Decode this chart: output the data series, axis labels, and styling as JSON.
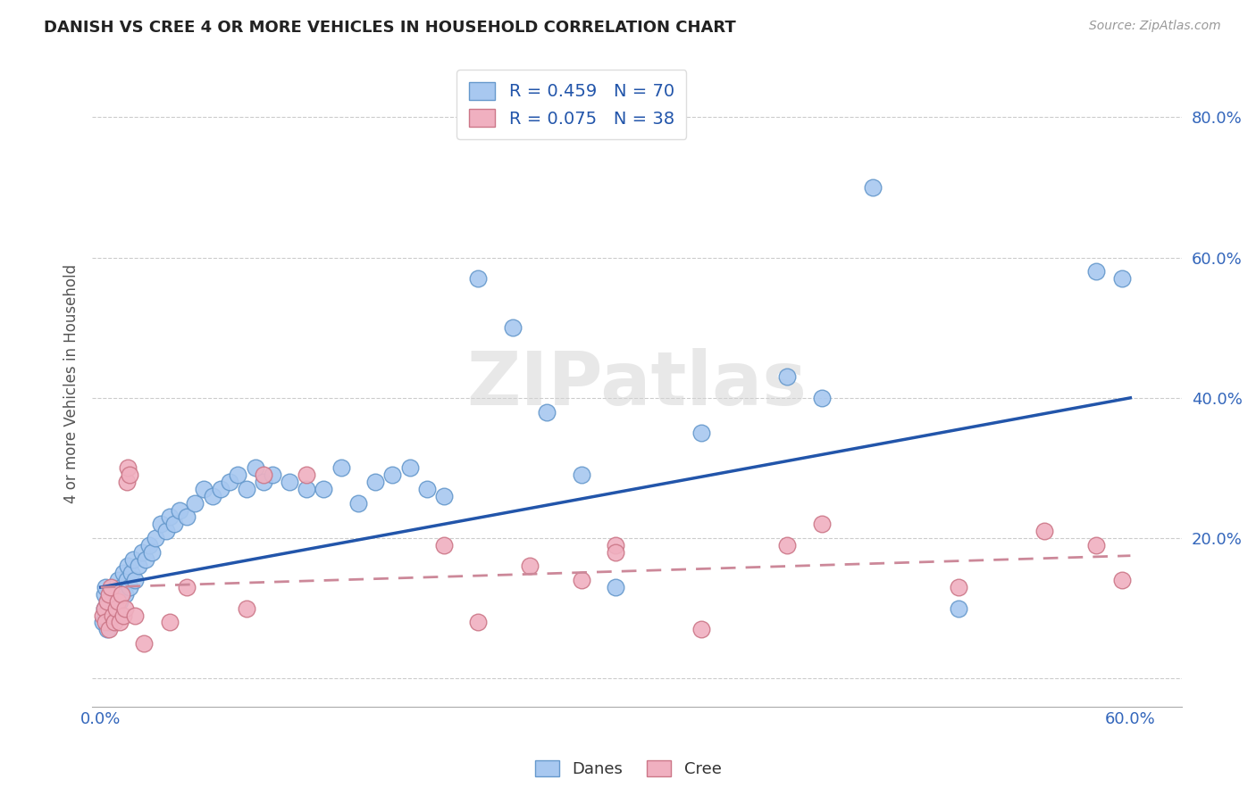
{
  "title": "DANISH VS CREE 4 OR MORE VEHICLES IN HOUSEHOLD CORRELATION CHART",
  "source": "Source: ZipAtlas.com",
  "ylabel": "4 or more Vehicles in Household",
  "xlim": [
    -0.005,
    0.63
  ],
  "ylim": [
    -0.04,
    0.88
  ],
  "xticks": [
    0.0,
    0.1,
    0.2,
    0.3,
    0.4,
    0.5,
    0.6
  ],
  "xtick_labels": [
    "0.0%",
    "",
    "",
    "",
    "",
    "",
    "60.0%"
  ],
  "ytick_positions": [
    0.0,
    0.2,
    0.4,
    0.6,
    0.8
  ],
  "ytick_labels": [
    "",
    "20.0%",
    "40.0%",
    "60.0%",
    "80.0%"
  ],
  "danes_color": "#a8c8f0",
  "danes_edge_color": "#6699cc",
  "cree_color": "#f0b0c0",
  "cree_edge_color": "#cc7788",
  "danes_R": 0.459,
  "danes_N": 70,
  "cree_R": 0.075,
  "cree_N": 38,
  "danes_line_color": "#2255aa",
  "cree_line_color": "#cc8899",
  "watermark": "ZIPatlas",
  "danes_line_x0": 0.0,
  "danes_line_y0": 0.13,
  "danes_line_x1": 0.6,
  "danes_line_y1": 0.4,
  "cree_line_x0": 0.0,
  "cree_line_y0": 0.13,
  "cree_line_x1": 0.6,
  "cree_line_y1": 0.175,
  "danes_x": [
    0.001,
    0.002,
    0.002,
    0.003,
    0.003,
    0.004,
    0.004,
    0.005,
    0.005,
    0.006,
    0.007,
    0.007,
    0.008,
    0.009,
    0.01,
    0.01,
    0.011,
    0.012,
    0.013,
    0.014,
    0.015,
    0.016,
    0.017,
    0.018,
    0.019,
    0.02,
    0.022,
    0.024,
    0.026,
    0.028,
    0.03,
    0.032,
    0.035,
    0.038,
    0.04,
    0.043,
    0.046,
    0.05,
    0.055,
    0.06,
    0.065,
    0.07,
    0.075,
    0.08,
    0.085,
    0.09,
    0.095,
    0.1,
    0.11,
    0.12,
    0.13,
    0.14,
    0.15,
    0.16,
    0.17,
    0.18,
    0.19,
    0.2,
    0.22,
    0.24,
    0.26,
    0.28,
    0.3,
    0.35,
    0.4,
    0.42,
    0.45,
    0.5,
    0.58,
    0.595
  ],
  "danes_y": [
    0.08,
    0.1,
    0.12,
    0.09,
    0.13,
    0.07,
    0.11,
    0.08,
    0.1,
    0.09,
    0.11,
    0.13,
    0.1,
    0.12,
    0.09,
    0.14,
    0.11,
    0.13,
    0.15,
    0.12,
    0.14,
    0.16,
    0.13,
    0.15,
    0.17,
    0.14,
    0.16,
    0.18,
    0.17,
    0.19,
    0.18,
    0.2,
    0.22,
    0.21,
    0.23,
    0.22,
    0.24,
    0.23,
    0.25,
    0.27,
    0.26,
    0.27,
    0.28,
    0.29,
    0.27,
    0.3,
    0.28,
    0.29,
    0.28,
    0.27,
    0.27,
    0.3,
    0.25,
    0.28,
    0.29,
    0.3,
    0.27,
    0.26,
    0.57,
    0.5,
    0.38,
    0.29,
    0.13,
    0.35,
    0.43,
    0.4,
    0.7,
    0.1,
    0.58,
    0.57
  ],
  "cree_x": [
    0.001,
    0.002,
    0.003,
    0.004,
    0.005,
    0.005,
    0.006,
    0.007,
    0.008,
    0.009,
    0.01,
    0.011,
    0.012,
    0.013,
    0.014,
    0.015,
    0.016,
    0.017,
    0.02,
    0.025,
    0.04,
    0.05,
    0.085,
    0.095,
    0.2,
    0.22,
    0.25,
    0.28,
    0.3,
    0.35,
    0.4,
    0.42,
    0.5,
    0.55,
    0.58,
    0.595,
    0.3,
    0.12
  ],
  "cree_y": [
    0.09,
    0.1,
    0.08,
    0.11,
    0.12,
    0.07,
    0.13,
    0.09,
    0.08,
    0.1,
    0.11,
    0.08,
    0.12,
    0.09,
    0.1,
    0.28,
    0.3,
    0.29,
    0.09,
    0.05,
    0.08,
    0.13,
    0.1,
    0.29,
    0.19,
    0.08,
    0.16,
    0.14,
    0.19,
    0.07,
    0.19,
    0.22,
    0.13,
    0.21,
    0.19,
    0.14,
    0.18,
    0.29
  ]
}
